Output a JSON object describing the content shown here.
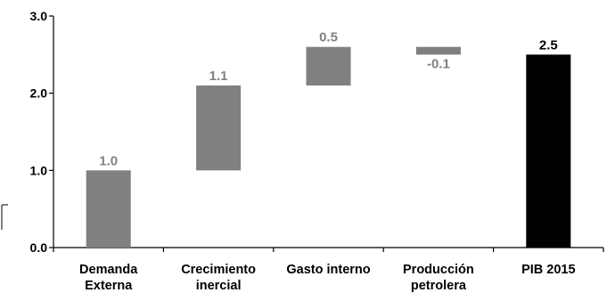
{
  "chart_data": {
    "type": "bar",
    "subtype": "waterfall",
    "title": "",
    "xlabel": "",
    "ylabel": "",
    "ylim": [
      0,
      3
    ],
    "yticks": [
      "0.0",
      "1.0",
      "2.0",
      "3.0"
    ],
    "grid": false,
    "legend": "none",
    "categories": [
      {
        "lines": [
          "Demanda",
          "Externa"
        ]
      },
      {
        "lines": [
          "Crecimiento",
          "inercial"
        ]
      },
      {
        "lines": [
          "Gasto interno"
        ]
      },
      {
        "lines": [
          "Producción",
          "petrolera"
        ]
      },
      {
        "lines": [
          "PIB 2015"
        ]
      }
    ],
    "bars": [
      {
        "base": 0.0,
        "top": 1.0,
        "label": "1.0",
        "color": "#808080",
        "label_color": "#808080",
        "label_pos": "above"
      },
      {
        "base": 1.0,
        "top": 2.1,
        "label": "1.1",
        "color": "#808080",
        "label_color": "#808080",
        "label_pos": "above"
      },
      {
        "base": 2.1,
        "top": 2.6,
        "label": "0.5",
        "color": "#808080",
        "label_color": "#808080",
        "label_pos": "above"
      },
      {
        "base": 2.5,
        "top": 2.6,
        "label": "-0.1",
        "color": "#808080",
        "label_color": "#808080",
        "label_pos": "below"
      },
      {
        "base": 0.0,
        "top": 2.5,
        "label": "2.5",
        "color": "#000000",
        "label_color": "#000000",
        "label_pos": "above"
      }
    ]
  }
}
